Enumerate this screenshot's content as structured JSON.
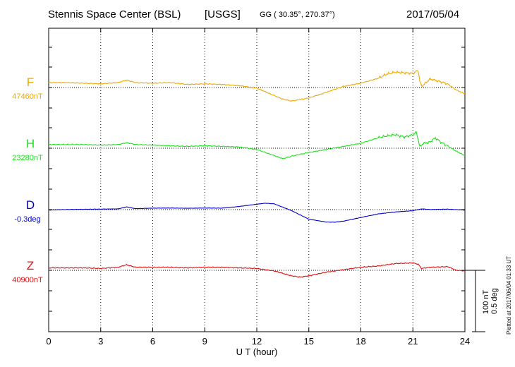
{
  "header": {
    "station": "Stennis Space Center (BSL)",
    "agency": "[USGS]",
    "coords": "GG ( 30.35°, 270.37°)",
    "date": "2017/05/04"
  },
  "plotted_at": "Plotted at 2017/06/04 01:33 UT",
  "scale": {
    "nt": "100 nT",
    "deg": "0.5 deg"
  },
  "components": [
    {
      "id": "F",
      "label": "F",
      "baseline": "47460nT",
      "color": "#f0a800"
    },
    {
      "id": "H",
      "label": "H",
      "baseline": "23280nT",
      "color": "#20e020"
    },
    {
      "id": "D",
      "label": "D",
      "baseline": "-0.3deg",
      "color": "#0000c8"
    },
    {
      "id": "Z",
      "label": "Z",
      "baseline": "40900nT",
      "color": "#e01010"
    }
  ],
  "chart_data": {
    "type": "line",
    "title": "Stennis Space Center (BSL)  [USGS]",
    "xlabel": "U T (hour)",
    "xlim": [
      0,
      24
    ],
    "xticks": [
      0,
      3,
      6,
      9,
      12,
      15,
      18,
      21,
      24
    ],
    "xtick_labels": [
      "0",
      "3",
      "6",
      "9",
      "12",
      "15",
      "18",
      "21",
      "24"
    ],
    "grid": true,
    "series": [
      {
        "name": "F",
        "unit": "nT",
        "baseline": 47460,
        "x": [
          0,
          1,
          2,
          3,
          4,
          4.5,
          5,
          6,
          7,
          8,
          9,
          10,
          11,
          12,
          13,
          13.5,
          14,
          15,
          16,
          17,
          18,
          19,
          19.5,
          20,
          20.5,
          21,
          21.3,
          21.4,
          21.5,
          22,
          22.5,
          23,
          23.5,
          24
        ],
        "y": [
          8,
          8,
          7,
          6,
          8,
          12,
          8,
          7,
          8,
          5,
          6,
          5,
          3,
          -1,
          -13,
          -19,
          -22,
          -17,
          -8,
          2,
          7,
          15,
          22,
          25,
          24,
          23,
          28,
          10,
          2,
          14,
          10,
          6,
          -4,
          -10
        ]
      },
      {
        "name": "H",
        "unit": "nT",
        "baseline": 23280,
        "x": [
          0,
          1,
          2,
          3,
          4,
          4.5,
          5,
          6,
          7,
          8,
          9,
          10,
          11,
          12,
          13,
          13.5,
          14,
          15,
          16,
          17,
          18,
          19,
          19.5,
          20,
          20.5,
          21,
          21.2,
          21.3,
          21.4,
          21.6,
          22,
          22.3,
          22.6,
          23,
          23.5,
          24
        ],
        "y": [
          6,
          6,
          6,
          5,
          6,
          9,
          6,
          5,
          4,
          3,
          4,
          3,
          2,
          -2,
          -12,
          -17,
          -13,
          -7,
          -2,
          3,
          8,
          17,
          20,
          22,
          18,
          22,
          26,
          15,
          2,
          8,
          10,
          17,
          10,
          4,
          -5,
          -12
        ]
      },
      {
        "name": "D",
        "unit": "deg",
        "baseline": -0.3,
        "x": [
          0,
          1,
          2,
          3,
          4,
          4.5,
          5,
          6,
          7,
          8,
          9,
          10,
          11,
          12,
          12.5,
          13,
          14,
          15,
          16,
          16.5,
          17,
          18,
          19,
          20,
          21,
          21.5,
          22,
          23,
          24
        ],
        "y": [
          -0.004,
          0.001,
          0.003,
          0.004,
          0.006,
          0.022,
          0.008,
          0.012,
          0.013,
          0.011,
          0.013,
          0.012,
          0.026,
          0.044,
          0.052,
          0.047,
          -0.008,
          -0.078,
          -0.101,
          -0.102,
          -0.094,
          -0.064,
          -0.035,
          -0.019,
          -0.009,
          0.006,
          0.001,
          0.004,
          -0.004
        ]
      },
      {
        "name": "Z",
        "unit": "nT",
        "baseline": 40900,
        "x": [
          0,
          1,
          2,
          3,
          4,
          4.5,
          5,
          6,
          7,
          8,
          9,
          10,
          11,
          12,
          13,
          14,
          14.5,
          15,
          16,
          17,
          18,
          19,
          20,
          21,
          21.3,
          21.5,
          22,
          23,
          23.5,
          24
        ],
        "y": [
          4,
          4,
          4,
          3,
          5,
          9,
          5,
          5,
          5,
          4,
          5,
          5,
          4,
          3,
          -1,
          -9,
          -11,
          -9,
          -3,
          1,
          5,
          7,
          11,
          12,
          10,
          3,
          5,
          6,
          0,
          -1
        ]
      }
    ]
  }
}
